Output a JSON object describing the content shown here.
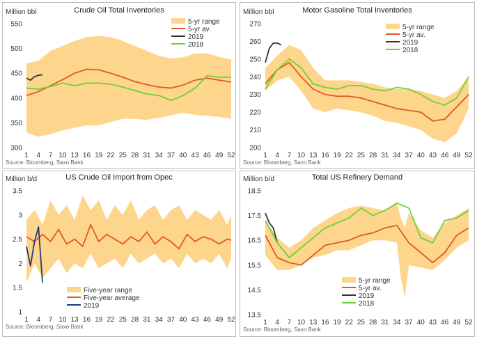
{
  "source": "Source: Bloomberg, Saxo Bank",
  "chart_data": [
    {
      "type": "line",
      "title": "Crude Oil Total Inventories",
      "ylabel": "Million bbl",
      "ylim": [
        300,
        550
      ],
      "yticks": [
        300,
        350,
        400,
        450,
        500,
        550
      ],
      "xticks": [
        1,
        4,
        7,
        10,
        13,
        16,
        19,
        22,
        25,
        28,
        31,
        34,
        37,
        40,
        43,
        46,
        49,
        52
      ],
      "legend": [
        "5-yr range",
        "5-yr av.",
        "2019",
        "2018"
      ],
      "legend_position": "top-right",
      "series": [
        {
          "name": "5-yr range",
          "kind": "band",
          "x": [
            1,
            4,
            7,
            10,
            13,
            16,
            19,
            22,
            25,
            28,
            31,
            34,
            37,
            40,
            43,
            46,
            49,
            52
          ],
          "low": [
            330,
            322,
            327,
            335,
            340,
            345,
            345,
            352,
            358,
            358,
            356,
            360,
            365,
            370,
            366,
            364,
            362,
            358
          ],
          "high": [
            470,
            475,
            495,
            505,
            515,
            523,
            525,
            523,
            515,
            505,
            495,
            485,
            480,
            482,
            490,
            490,
            483,
            478
          ]
        },
        {
          "name": "5-yr av.",
          "x": [
            1,
            4,
            7,
            10,
            13,
            16,
            19,
            22,
            25,
            28,
            31,
            34,
            37,
            40,
            43,
            46,
            49,
            52
          ],
          "y": [
            405,
            413,
            425,
            437,
            450,
            458,
            457,
            450,
            442,
            433,
            427,
            422,
            420,
            426,
            436,
            440,
            436,
            432
          ]
        },
        {
          "name": "2019",
          "x": [
            1,
            2,
            3,
            4,
            5
          ],
          "y": [
            440,
            436,
            443,
            446,
            447
          ]
        },
        {
          "name": "2018",
          "x": [
            1,
            4,
            7,
            10,
            13,
            16,
            19,
            22,
            25,
            28,
            31,
            34,
            37,
            40,
            43,
            46,
            49,
            52
          ],
          "y": [
            420,
            418,
            423,
            430,
            425,
            430,
            430,
            428,
            422,
            415,
            408,
            405,
            395,
            405,
            420,
            445,
            442,
            442
          ]
        }
      ]
    },
    {
      "type": "line",
      "title": "Motor Gasoline Total Inventories",
      "ylabel": "Million bbl",
      "ylim": [
        200,
        270
      ],
      "yticks": [
        200,
        210,
        220,
        230,
        240,
        250,
        260,
        270
      ],
      "xticks": [
        1,
        4,
        7,
        10,
        13,
        16,
        19,
        22,
        25,
        28,
        31,
        34,
        37,
        40,
        43,
        46,
        49,
        52
      ],
      "legend": [
        "5-yr range",
        "5-yr av.",
        "2019",
        "2018"
      ],
      "legend_position": "top-right",
      "series": [
        {
          "name": "5-yr range",
          "kind": "band",
          "x": [
            1,
            4,
            7,
            10,
            13,
            16,
            19,
            22,
            25,
            28,
            31,
            34,
            37,
            40,
            43,
            46,
            49,
            52
          ],
          "low": [
            232,
            238,
            240,
            232,
            222,
            220,
            222,
            221,
            220,
            218,
            215,
            214,
            212,
            210,
            205,
            203,
            208,
            222
          ],
          "high": [
            245,
            252,
            258,
            255,
            245,
            238,
            238,
            238,
            237,
            236,
            234,
            233,
            233,
            232,
            230,
            228,
            232,
            240
          ]
        },
        {
          "name": "5-yr av.",
          "x": [
            1,
            4,
            7,
            10,
            13,
            16,
            19,
            22,
            25,
            28,
            31,
            34,
            37,
            40,
            43,
            46,
            49,
            52
          ],
          "y": [
            236,
            244,
            248,
            240,
            233,
            230,
            229,
            229,
            228,
            226,
            224,
            222,
            221,
            220,
            215,
            216,
            223,
            230
          ]
        },
        {
          "name": "2019",
          "x": [
            1,
            2,
            3,
            4,
            5
          ],
          "y": [
            248,
            256,
            259,
            259,
            258
          ]
        },
        {
          "name": "2018",
          "x": [
            1,
            4,
            7,
            10,
            13,
            16,
            19,
            22,
            25,
            28,
            31,
            34,
            37,
            40,
            43,
            46,
            49,
            52
          ],
          "y": [
            233,
            244,
            250,
            245,
            236,
            234,
            233,
            235,
            235,
            233,
            232,
            234,
            233,
            230,
            226,
            224,
            228,
            240
          ]
        }
      ]
    },
    {
      "type": "line",
      "title": "US Crude Oil Import from Opec",
      "ylabel": "Million b/d",
      "ylim": [
        1.0,
        3.5
      ],
      "yticks": [
        1.0,
        1.5,
        2.0,
        2.5,
        3.0,
        3.5
      ],
      "xticks": [
        1,
        4,
        7,
        10,
        13,
        16,
        19,
        22,
        25,
        28,
        31,
        34,
        37,
        40,
        43,
        46,
        49,
        52
      ],
      "legend": [
        "Five-year range",
        "Five-year average",
        "2019"
      ],
      "legend_position": "bottom-left",
      "series": [
        {
          "name": "Five-year range",
          "kind": "band",
          "x": [
            1,
            3,
            5,
            7,
            9,
            11,
            13,
            15,
            17,
            19,
            21,
            23,
            25,
            27,
            29,
            31,
            33,
            35,
            37,
            39,
            41,
            43,
            45,
            47,
            49,
            51,
            52
          ],
          "low": [
            1.6,
            2.0,
            1.7,
            1.9,
            2.1,
            1.8,
            2.0,
            1.9,
            2.2,
            1.9,
            2.0,
            2.1,
            1.9,
            2.2,
            2.0,
            2.1,
            2.2,
            2.0,
            2.1,
            1.9,
            2.2,
            2.0,
            2.1,
            2.0,
            2.2,
            1.9,
            2.1
          ],
          "high": [
            2.9,
            3.1,
            2.8,
            3.3,
            3.0,
            3.2,
            2.9,
            3.4,
            3.1,
            3.3,
            2.9,
            3.2,
            3.0,
            3.3,
            2.9,
            3.1,
            3.2,
            2.9,
            3.1,
            3.2,
            2.9,
            3.1,
            3.0,
            2.9,
            3.1,
            2.8,
            3.0
          ]
        },
        {
          "name": "Five-year average",
          "x": [
            1,
            3,
            5,
            7,
            9,
            11,
            13,
            15,
            17,
            19,
            21,
            23,
            25,
            27,
            29,
            31,
            33,
            35,
            37,
            39,
            41,
            43,
            45,
            47,
            49,
            51,
            52
          ],
          "y": [
            2.55,
            2.45,
            2.6,
            2.45,
            2.7,
            2.4,
            2.5,
            2.35,
            2.8,
            2.45,
            2.6,
            2.5,
            2.4,
            2.55,
            2.45,
            2.65,
            2.4,
            2.55,
            2.45,
            2.3,
            2.6,
            2.45,
            2.55,
            2.5,
            2.4,
            2.5,
            2.48
          ]
        },
        {
          "name": "2019",
          "x": [
            1,
            2,
            3,
            4,
            5
          ],
          "y": [
            2.35,
            1.95,
            2.45,
            2.75,
            1.6
          ]
        }
      ]
    },
    {
      "type": "line",
      "title": "Total US Refinery Demand",
      "ylabel": "Million b/d",
      "ylim": [
        13.5,
        18.5
      ],
      "yticks": [
        13.5,
        14.5,
        15.5,
        16.5,
        17.5,
        18.5
      ],
      "xticks": [
        1,
        4,
        7,
        10,
        13,
        16,
        19,
        22,
        25,
        28,
        31,
        34,
        37,
        40,
        43,
        46,
        49,
        52
      ],
      "legend": [
        "5-yr range",
        "5-yr av.",
        "2019",
        "2018"
      ],
      "legend_position": "bottom-right",
      "series": [
        {
          "name": "5-yr range",
          "kind": "band",
          "x": [
            1,
            4,
            7,
            10,
            13,
            16,
            19,
            22,
            25,
            28,
            31,
            34,
            35,
            36,
            37,
            40,
            43,
            46,
            49,
            52
          ],
          "low": [
            15.9,
            15.3,
            15.3,
            15.5,
            15.8,
            15.9,
            16.1,
            16.1,
            16.3,
            16.5,
            16.5,
            16.4,
            15.0,
            14.2,
            15.5,
            15.4,
            15.3,
            15.7,
            16.2,
            16.5
          ],
          "high": [
            17.3,
            16.6,
            16.2,
            16.5,
            17.0,
            17.3,
            17.6,
            17.8,
            17.9,
            17.8,
            17.7,
            18.0,
            17.4,
            17.0,
            17.6,
            16.9,
            16.6,
            17.2,
            17.5,
            17.8
          ]
        },
        {
          "name": "5-yr av.",
          "x": [
            1,
            4,
            7,
            10,
            13,
            16,
            19,
            22,
            25,
            28,
            31,
            34,
            37,
            40,
            43,
            46,
            49,
            52
          ],
          "y": [
            16.7,
            15.8,
            15.6,
            15.5,
            15.9,
            16.3,
            16.4,
            16.5,
            16.7,
            16.8,
            17.0,
            17.1,
            16.4,
            16.0,
            15.6,
            16.0,
            16.7,
            17.0
          ]
        },
        {
          "name": "2019",
          "x": [
            1,
            2,
            3,
            4
          ],
          "y": [
            17.6,
            17.2,
            17.0,
            16.4
          ]
        },
        {
          "name": "2018",
          "x": [
            1,
            4,
            7,
            10,
            13,
            16,
            19,
            22,
            25,
            28,
            31,
            34,
            37,
            40,
            43,
            46,
            49,
            52
          ],
          "y": [
            17.3,
            16.4,
            15.8,
            16.2,
            16.6,
            17.0,
            17.2,
            17.4,
            17.8,
            17.5,
            17.7,
            18.0,
            17.8,
            16.6,
            16.4,
            17.3,
            17.4,
            17.7
          ]
        }
      ]
    }
  ]
}
